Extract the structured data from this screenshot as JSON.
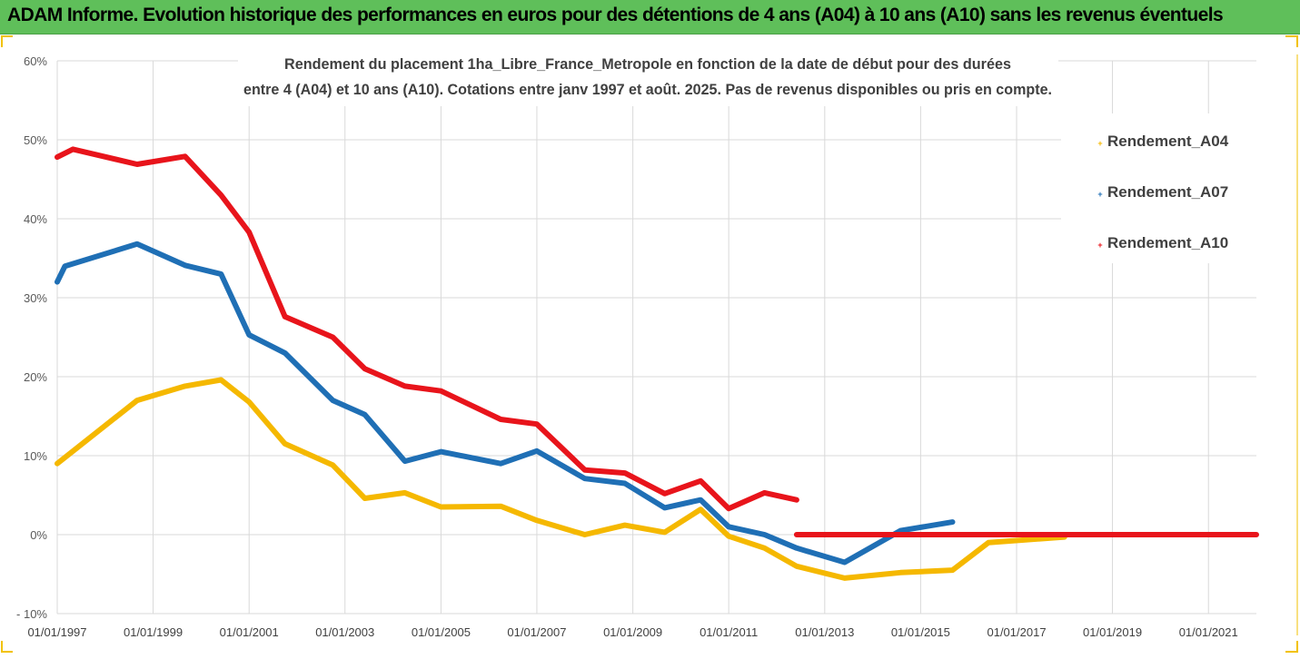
{
  "banner": {
    "title": "ADAM Informe. Evolution historique des performances en euros pour des détentions de 4 ans (A04) à 10 ans (A10) sans les revenus éventuels"
  },
  "colors": {
    "banner": "#5fbf5a",
    "frame_accent": "#f2c200",
    "gridline": "#d9d9d9"
  },
  "chart_data": {
    "type": "line",
    "title": "Rendement du placement 1ha_Libre_France_Metropole en fonction de la date de début pour des durées",
    "subtitle": "entre 4 (A04) et 10 ans (A10). Cotations entre janv 1997 et août. 2025. Pas de revenus disponibles ou pris en compte.",
    "xlabel": "",
    "ylabel": "",
    "x_ticks": [
      "01/01/1997",
      "01/01/1999",
      "01/01/2001",
      "01/01/2003",
      "01/01/2005",
      "01/01/2007",
      "01/01/2009",
      "01/01/2011",
      "01/01/2013",
      "01/01/2015",
      "01/01/2017",
      "01/01/2019",
      "01/01/2021"
    ],
    "y_ticks": [
      "60%",
      "50%",
      "40%",
      "30%",
      "20%",
      "10%",
      "0%",
      "- 10%"
    ],
    "ylim": [
      -10,
      60
    ],
    "xlim": [
      "01/01/1997",
      "01/01/2022"
    ],
    "grid": true,
    "legend_position": "right",
    "series": [
      {
        "name": "Rendement_A04",
        "color": "#f5b800",
        "points": [
          [
            "01/01/1997",
            9
          ],
          [
            "01/09/1998",
            17
          ],
          [
            "01/09/1999",
            18.8
          ],
          [
            "01/06/2000",
            19.6
          ],
          [
            "01/01/2001",
            16.8
          ],
          [
            "01/10/2001",
            11.5
          ],
          [
            "01/10/2002",
            8.8
          ],
          [
            "01/06/2003",
            4.6
          ],
          [
            "01/04/2004",
            5.3
          ],
          [
            "01/01/2005",
            3.5
          ],
          [
            "01/04/2006",
            3.6
          ],
          [
            "01/01/2007",
            1.8
          ],
          [
            "01/01/2008",
            0
          ],
          [
            "01/11/2008",
            1.2
          ],
          [
            "01/09/2009",
            0.3
          ],
          [
            "01/06/2010",
            3.2
          ],
          [
            "01/01/2011",
            -0.2
          ],
          [
            "01/10/2011",
            -1.7
          ],
          [
            "01/06/2012",
            -4
          ],
          [
            "01/06/2013",
            -5.5
          ],
          [
            "01/08/2014",
            -4.8
          ],
          [
            "01/09/2015",
            -4.5
          ],
          [
            "01/06/2016",
            -1
          ],
          [
            "01/01/2018",
            -0.3
          ]
        ]
      },
      {
        "name": "Rendement_A07",
        "color": "#1f6fb5",
        "points": [
          [
            "01/01/1997",
            32
          ],
          [
            "01/03/1997",
            34
          ],
          [
            "01/09/1998",
            36.8
          ],
          [
            "01/09/1999",
            34.1
          ],
          [
            "01/06/2000",
            33
          ],
          [
            "01/01/2001",
            25.3
          ],
          [
            "01/10/2001",
            23
          ],
          [
            "01/10/2002",
            17
          ],
          [
            "01/06/2003",
            15.2
          ],
          [
            "01/04/2004",
            9.3
          ],
          [
            "01/01/2005",
            10.5
          ],
          [
            "01/04/2006",
            9
          ],
          [
            "01/01/2007",
            10.6
          ],
          [
            "01/01/2008",
            7.1
          ],
          [
            "01/11/2008",
            6.5
          ],
          [
            "01/09/2009",
            3.4
          ],
          [
            "01/06/2010",
            4.4
          ],
          [
            "01/01/2011",
            1
          ],
          [
            "01/10/2011",
            0
          ],
          [
            "01/06/2012",
            -1.7
          ],
          [
            "01/06/2013",
            -3.5
          ],
          [
            "01/08/2014",
            0.5
          ],
          [
            "01/09/2015",
            1.6
          ]
        ]
      },
      {
        "name": "Rendement_A10",
        "color": "#e8141b",
        "points": [
          [
            "01/01/1997",
            47.8
          ],
          [
            "01/05/1997",
            48.8
          ],
          [
            "01/09/1998",
            46.9
          ],
          [
            "01/09/1999",
            47.9
          ],
          [
            "01/06/2000",
            43
          ],
          [
            "01/01/2001",
            38.3
          ],
          [
            "01/10/2001",
            27.6
          ],
          [
            "01/10/2002",
            25
          ],
          [
            "01/06/2003",
            21
          ],
          [
            "01/04/2004",
            18.8
          ],
          [
            "01/01/2005",
            18.2
          ],
          [
            "01/04/2006",
            14.6
          ],
          [
            "01/01/2007",
            14
          ],
          [
            "01/01/2008",
            8.2
          ],
          [
            "01/11/2008",
            7.8
          ],
          [
            "01/09/2009",
            5.2
          ],
          [
            "01/06/2010",
            6.8
          ],
          [
            "01/01/2011",
            3.3
          ],
          [
            "01/10/2011",
            5.3
          ],
          [
            "01/06/2012",
            4.4
          ],
          [
            "GAP",
            null
          ],
          [
            "01/06/2012",
            0
          ],
          [
            "01/01/2022",
            0
          ]
        ]
      }
    ]
  }
}
